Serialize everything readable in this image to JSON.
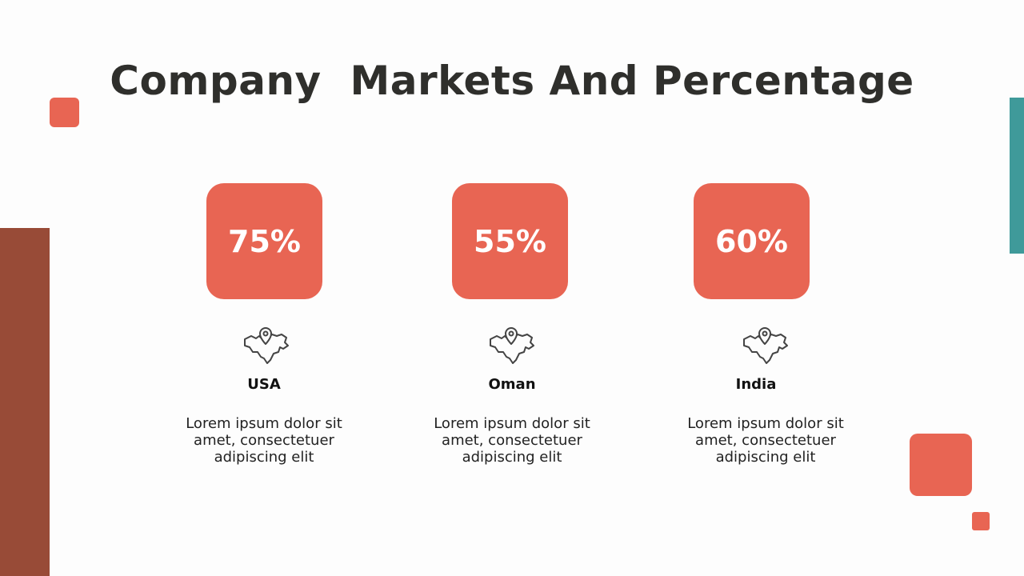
{
  "header": {
    "title": "Company  Markets And Percentage"
  },
  "markets": [
    {
      "percent": "75%",
      "name": "USA",
      "description": [
        "Lorem ipsum dolor sit",
        "amet, consectetuer",
        "adipiscing elit"
      ]
    },
    {
      "percent": "55%",
      "name": "Oman",
      "description": [
        "Lorem ipsum dolor sit",
        "amet, consectetuer",
        "adipiscing elit"
      ]
    },
    {
      "percent": "60%",
      "name": "India",
      "description": [
        "Lorem ipsum dolor sit",
        "amet, consectetuer",
        "adipiscing elit"
      ]
    }
  ]
}
